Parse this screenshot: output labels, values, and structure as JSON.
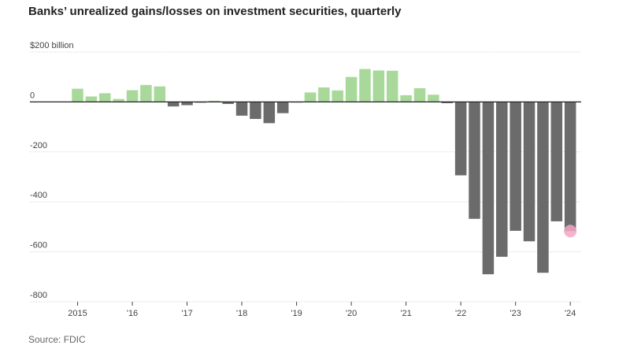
{
  "title": "Banks’ unrealized gains/losses on investment securities, quarterly",
  "source": "Source: FDIC",
  "colors": {
    "positive": "#a8d99a",
    "negative": "#6b6b6b",
    "highlight": "#f2a7c4"
  },
  "chart_data": {
    "type": "bar",
    "title": "Banks’ unrealized gains/losses on investment securities, quarterly",
    "ylabel": "$ billion",
    "ylim": [
      -800,
      200
    ],
    "yticks": [
      200,
      0,
      -200,
      -400,
      -600,
      -800
    ],
    "ytick_labels": [
      "$200 billion",
      "0",
      "-200",
      "-400",
      "-600",
      "-800"
    ],
    "xtick_labels": [
      "2015",
      "'16",
      "'17",
      "'18",
      "'19",
      "'20",
      "'21",
      "'22",
      "'23",
      "'24"
    ],
    "categories": [
      "2015Q1",
      "2015Q2",
      "2015Q3",
      "2015Q4",
      "2016Q1",
      "2016Q2",
      "2016Q3",
      "2016Q4",
      "2017Q1",
      "2017Q2",
      "2017Q3",
      "2017Q4",
      "2018Q1",
      "2018Q2",
      "2018Q3",
      "2018Q4",
      "2019Q1",
      "2019Q2",
      "2019Q3",
      "2019Q4",
      "2020Q1",
      "2020Q2",
      "2020Q3",
      "2020Q4",
      "2021Q1",
      "2021Q2",
      "2021Q3",
      "2021Q4",
      "2022Q1",
      "2022Q2",
      "2022Q3",
      "2022Q4",
      "2023Q1",
      "2023Q2",
      "2023Q3",
      "2023Q4",
      "2024Q1"
    ],
    "values": [
      53,
      22,
      35,
      12,
      47,
      68,
      62,
      -18,
      -13,
      -3,
      5,
      -8,
      -55,
      -68,
      -85,
      -45,
      -2,
      38,
      58,
      46,
      100,
      132,
      126,
      125,
      27,
      55,
      29,
      -5,
      -294,
      -468,
      -690,
      -620,
      -516,
      -558,
      -684,
      -478,
      -517
    ],
    "highlight_index": 36,
    "grid": true
  }
}
